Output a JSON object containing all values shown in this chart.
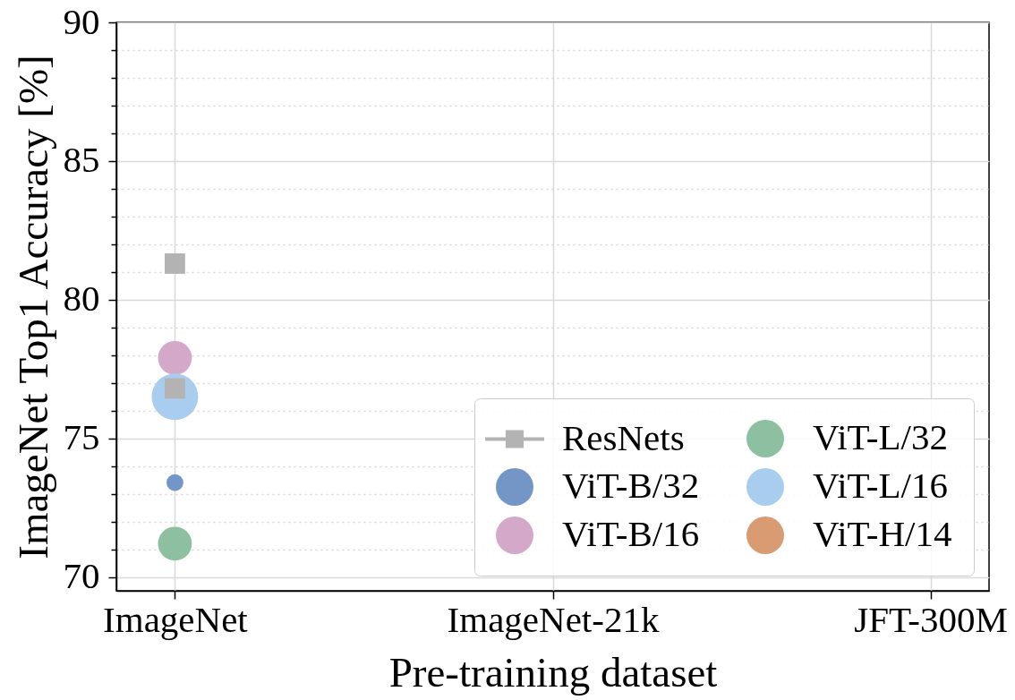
{
  "chart_data": {
    "type": "bubble",
    "xlabel": "Pre-training dataset",
    "ylabel": "ImageNet Top1 Accuracy [%]",
    "categories": [
      "ImageNet",
      "ImageNet-21k",
      "JFT-300M"
    ],
    "ylim": [
      69.5,
      90
    ],
    "yticks": [
      70,
      {
        "value": 71,
        "label": null
      },
      {
        "value": 72,
        "label": null
      },
      {
        "value": 73,
        "label": null
      },
      {
        "value": 74,
        "label": null
      },
      75,
      {
        "value": 76,
        "label": null
      },
      {
        "value": 77,
        "label": null
      },
      {
        "value": 78,
        "label": null
      },
      {
        "value": 79,
        "label": null
      },
      80,
      {
        "value": 81,
        "label": null
      },
      {
        "value": 82,
        "label": null
      },
      {
        "value": 83,
        "label": null
      },
      {
        "value": 84,
        "label": null
      },
      85,
      {
        "value": 86,
        "label": null
      },
      {
        "value": 87,
        "label": null
      },
      {
        "value": 88,
        "label": null
      },
      {
        "value": 89,
        "label": null
      },
      90
    ],
    "grid": true,
    "legend": "bottom right",
    "series": [
      {
        "name": "ResNets",
        "type": "line",
        "marker": "square",
        "color": "#b3b3b3",
        "values": [
          81.3,
          null,
          null
        ]
      },
      {
        "type": "line",
        "marker": "square",
        "color": "#b3b3b3",
        "values": [
          76.8,
          null,
          null
        ]
      },
      {
        "name": "ViT-B/32",
        "color": "#7396c6",
        "values": [
          73.4,
          null,
          null
        ],
        "sizes": [
          0.13,
          null,
          null
        ]
      },
      {
        "name": "ViT-B/16",
        "color": "#d3a8c9",
        "values": [
          77.9,
          null,
          null
        ],
        "sizes": [
          0.53,
          null,
          null
        ]
      },
      {
        "name": "ViT-L/32",
        "color": "#8cc0a0",
        "values": [
          71.2,
          null,
          null
        ],
        "sizes": [
          0.53,
          null,
          null
        ]
      },
      {
        "name": "ViT-L/16",
        "color": "#a9cdee",
        "values": [
          76.5,
          null,
          null
        ],
        "sizes": [
          1,
          null,
          null
        ]
      },
      {
        "name": "ViT-H/14",
        "color": "#d89b72",
        "values": [
          null,
          null,
          null
        ]
      }
    ]
  }
}
